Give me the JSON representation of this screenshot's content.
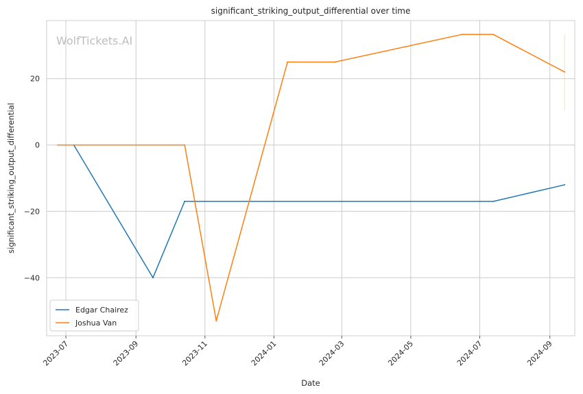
{
  "chart_data": {
    "type": "line",
    "title": "significant_striking_output_differential over time",
    "xlabel": "Date",
    "ylabel": "significant_striking_output_differential",
    "watermark": "WolfTickets.AI",
    "x_ticks": [
      "2023-07-01",
      "2023-09-01",
      "2023-11-01",
      "2024-01-01",
      "2024-03-01",
      "2024-05-01",
      "2024-07-01",
      "2024-09-01"
    ],
    "x_tick_labels": [
      "2023-07",
      "2023-09",
      "2023-11",
      "2024-01",
      "2024-03",
      "2024-05",
      "2024-07",
      "2024-09"
    ],
    "y_ticks": [
      -40,
      -20,
      0,
      20
    ],
    "y_tick_labels": [
      "−40",
      "−20",
      "0",
      "20"
    ],
    "xlim": [
      "2023-06-14",
      "2024-09-23"
    ],
    "ylim": [
      -57.5,
      37.5
    ],
    "grid": true,
    "legend_position": "lower-left",
    "series": [
      {
        "name": "Edgar Chairez",
        "color": "#1f77b4",
        "x": [
          "2023-07-08",
          "2023-09-16",
          "2023-10-14",
          "2024-07-13",
          "2024-09-14"
        ],
        "y": [
          0,
          -40,
          -17,
          -17,
          -12
        ]
      },
      {
        "name": "Joshua Van",
        "color": "#ff7f0e",
        "x": [
          "2023-06-24",
          "2023-10-14",
          "2023-11-11",
          "2024-01-13",
          "2024-02-24",
          "2024-06-15",
          "2024-07-13",
          "2024-09-14"
        ],
        "y": [
          0,
          0,
          -53,
          25,
          25,
          33.3,
          33.3,
          22
        ]
      }
    ],
    "error_bar": {
      "series": "Joshua Van",
      "x": "2024-09-14",
      "y_low": 10.5,
      "y_high": 33.3
    }
  }
}
